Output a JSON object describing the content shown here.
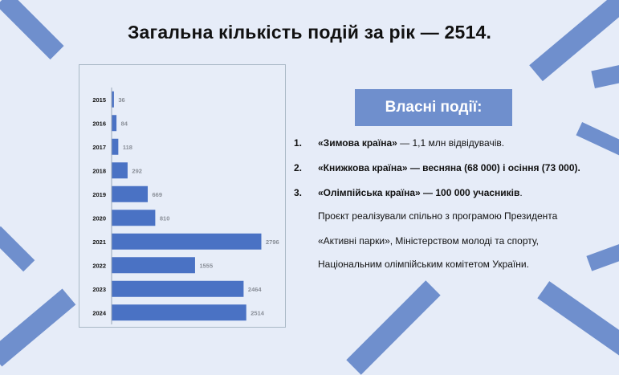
{
  "title": "Загальна кількість подій за рік — 2514.",
  "banner": "Власні події:",
  "list": [
    {
      "num": "1.",
      "name": "«Зимова країна»",
      "rest": " — 1,1 млн відвідувачів."
    },
    {
      "num": "2.",
      "name": "«Книжкова країна»",
      "rest": " — весняна (68 000) і осіння (73 000)."
    },
    {
      "num": "3.",
      "name": "«Олімпійська країна» — 100 000 учасників",
      "rest": "."
    }
  ],
  "paragraph": [
    "Проєкт реалізували спільно з програмою Президента",
    "«Активні парки», Міністерством молоді та спорту,",
    "Національним олімпійським комітетом України."
  ],
  "colors": {
    "accent": "#6f8fcd",
    "bar": "#4a72c4",
    "background": "#e6ecf8"
  },
  "chart_data": {
    "type": "bar",
    "orientation": "horizontal",
    "categories": [
      "2015",
      "2016",
      "2017",
      "2018",
      "2019",
      "2020",
      "2021",
      "2022",
      "2023",
      "2024"
    ],
    "values": [
      36,
      84,
      118,
      292,
      669,
      810,
      2796,
      1555,
      2464,
      2514
    ],
    "data_labels": [
      "36",
      "84",
      "118",
      "292",
      "669",
      "810",
      "2796",
      "1555",
      "2464",
      "2514"
    ],
    "grid": false,
    "legend": "none"
  }
}
